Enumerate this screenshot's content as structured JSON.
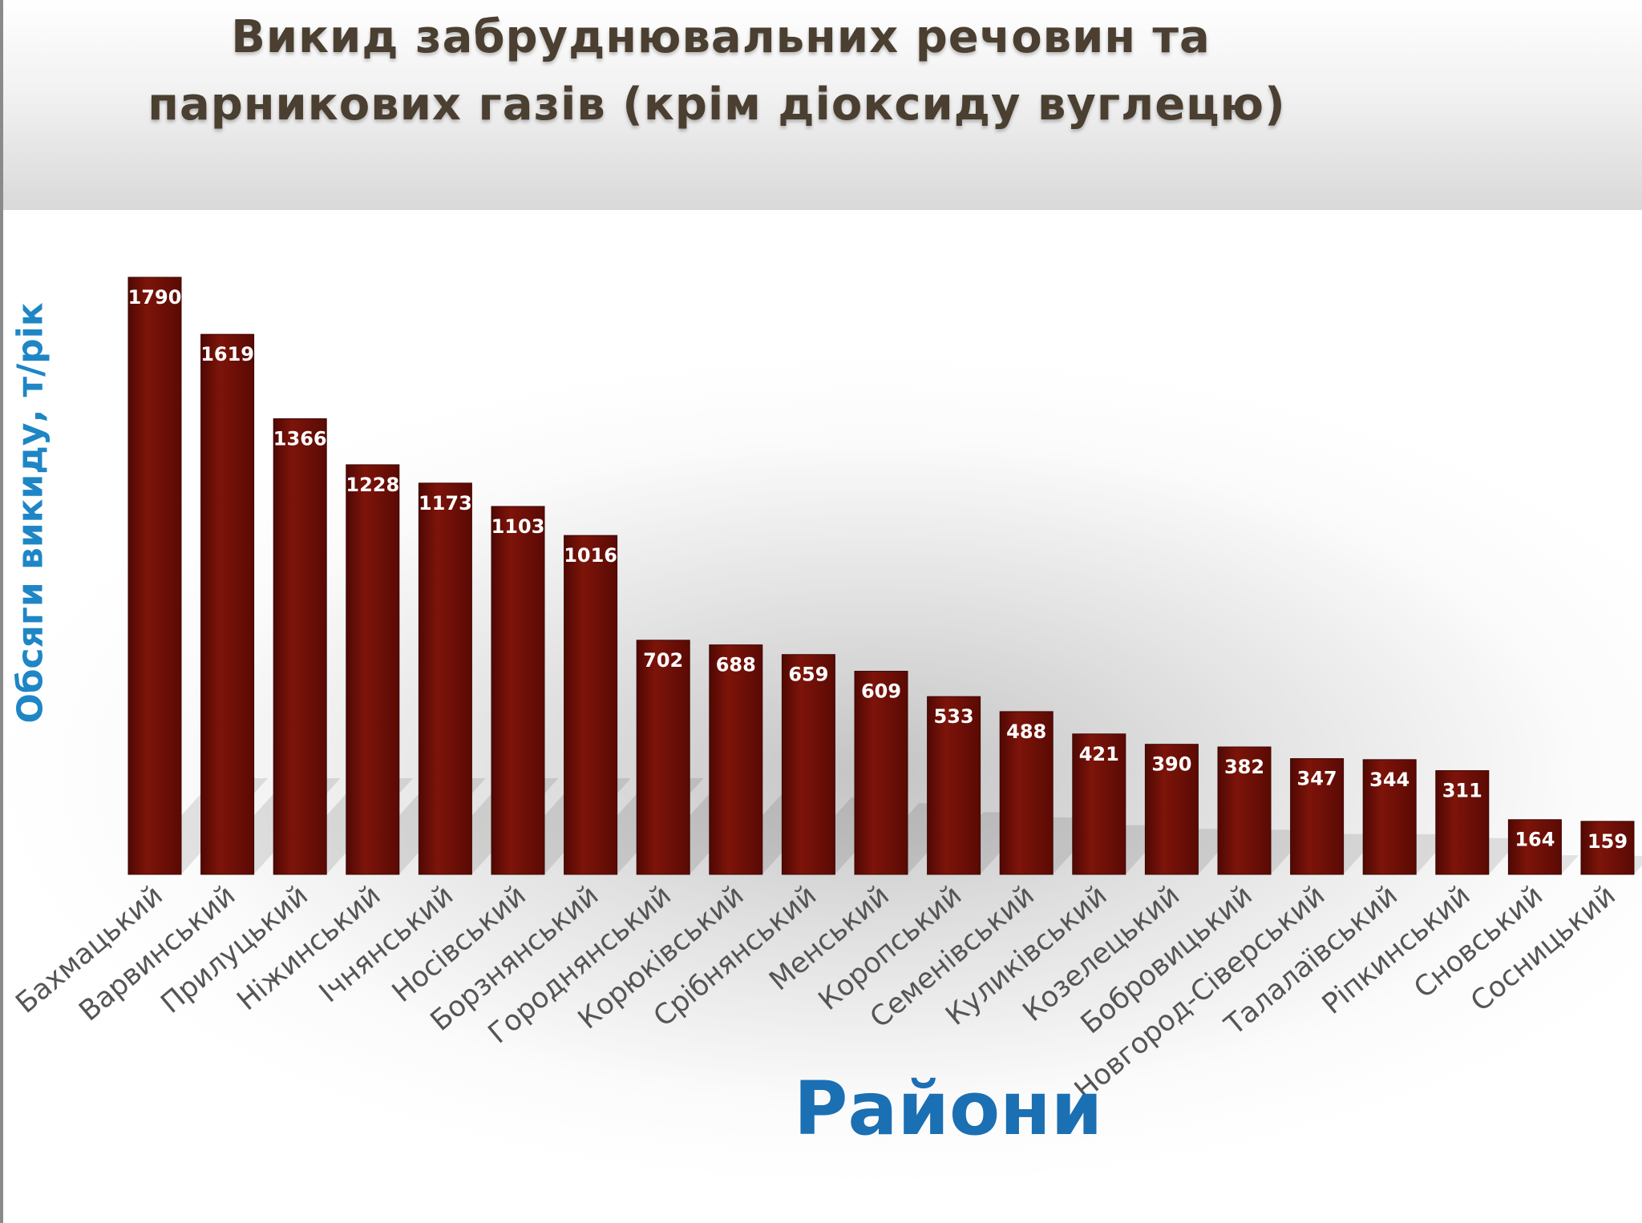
{
  "slide": {
    "title_line1": "Викид забруднювальних речовин та",
    "title_line2": "парникових газів (крім діоксиду вуглецю)"
  },
  "chart_data": {
    "type": "bar",
    "title": "Викид забруднювальних речовин та парникових газів (крім діоксиду вуглецю)",
    "xlabel": "Райони",
    "ylabel": "Обсяги викиду, т/рік",
    "categories": [
      "Бахмацький",
      "Варвинський",
      "Прилуцький",
      "Ніжинський",
      "Ічнянський",
      "Носівський",
      "Борзнянський",
      "Городнянський",
      "Корюківський",
      "Срібнянський",
      "Менський",
      "Коропський",
      "Семенівський",
      "Куликівський",
      "Козелецький",
      "Бобровицький",
      "Новгород-Сіверський",
      "Талалаївський",
      "Ріпкинський",
      "Сновський",
      "Сосницький"
    ],
    "values": [
      1790,
      1619,
      1366,
      1228,
      1173,
      1103,
      1016,
      702,
      688,
      659,
      609,
      533,
      488,
      421,
      390,
      382,
      347,
      344,
      311,
      164,
      159
    ],
    "ylim": [
      0,
      1790
    ],
    "grid": false,
    "legend": "none",
    "bar_color": "#6d0d05",
    "bar_color_highlight": "#8a1a10",
    "label_color": "#ffffff",
    "ylabel_color": "#1f86c6",
    "xlabel_color": "#1b6fb3",
    "title_color": "#4a3f30"
  }
}
